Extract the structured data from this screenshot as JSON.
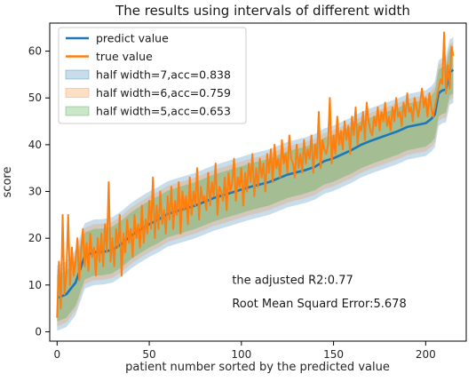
{
  "chart_data": {
    "type": "line",
    "title": "The results using intervals of different width",
    "xlabel": "patient number sorted by the predicted value",
    "ylabel": "score",
    "xlim": [
      -4,
      222
    ],
    "ylim": [
      -2,
      66
    ],
    "xticks": [
      0,
      50,
      100,
      150,
      200
    ],
    "yticks": [
      0,
      10,
      20,
      30,
      40,
      50,
      60
    ],
    "grid": false,
    "legend_position": "top-left",
    "legend": [
      {
        "label": "predict value",
        "kind": "line",
        "color": "#1f77b4"
      },
      {
        "label": "true value",
        "kind": "line",
        "color": "#ff7f0e"
      },
      {
        "label": "half width=7,acc=0.838",
        "kind": "band",
        "color": "#1f77b4",
        "half_width": 7
      },
      {
        "label": "half width=6,acc=0.759",
        "kind": "band",
        "color": "#ff7f0e",
        "half_width": 6
      },
      {
        "label": "half width=5,acc=0.653",
        "kind": "band",
        "color": "#2ca02c",
        "half_width": 5
      }
    ],
    "annotations": [
      {
        "text": "the adjusted R2:0.77",
        "x": 120,
        "y": 11
      },
      {
        "text": "Root Mean Squard Error:5.678",
        "x": 120,
        "y": 6
      }
    ],
    "series": [
      {
        "name": "predict value",
        "color": "#1f77b4",
        "x": [
          0,
          5,
          10,
          15,
          20,
          25,
          30,
          35,
          40,
          45,
          50,
          55,
          60,
          65,
          70,
          75,
          80,
          85,
          90,
          95,
          100,
          105,
          110,
          115,
          120,
          125,
          130,
          135,
          140,
          145,
          150,
          155,
          160,
          165,
          170,
          175,
          180,
          185,
          190,
          195,
          200,
          203,
          205,
          207,
          209,
          211,
          213,
          215
        ],
        "values": [
          7.2,
          8.0,
          10.5,
          16.2,
          17.0,
          17.1,
          17.5,
          18.8,
          20.5,
          21.8,
          23.0,
          24.0,
          25.2,
          25.8,
          26.4,
          27.0,
          27.8,
          28.6,
          29.2,
          29.8,
          30.4,
          31.0,
          31.5,
          32.0,
          32.8,
          33.6,
          34.1,
          34.6,
          35.3,
          36.5,
          37.1,
          38.0,
          38.9,
          40.0,
          40.8,
          41.5,
          42.2,
          42.9,
          43.8,
          44.2,
          44.6,
          45.5,
          46.5,
          51.0,
          51.6,
          51.8,
          55.5,
          56.0
        ]
      },
      {
        "name": "true value",
        "color": "#ff7f0e",
        "x": [
          0,
          1,
          2,
          3,
          4,
          5,
          6,
          7,
          8,
          9,
          10,
          11,
          12,
          13,
          14,
          15,
          16,
          17,
          18,
          19,
          20,
          21,
          22,
          23,
          24,
          25,
          26,
          27,
          28,
          29,
          30,
          31,
          32,
          33,
          34,
          35,
          36,
          37,
          38,
          39,
          40,
          41,
          42,
          43,
          44,
          45,
          46,
          47,
          48,
          49,
          50,
          51,
          52,
          53,
          54,
          55,
          56,
          57,
          58,
          59,
          60,
          61,
          62,
          63,
          64,
          65,
          66,
          67,
          68,
          69,
          70,
          71,
          72,
          73,
          74,
          75,
          76,
          77,
          78,
          79,
          80,
          81,
          82,
          83,
          84,
          85,
          86,
          87,
          88,
          89,
          90,
          91,
          92,
          93,
          94,
          95,
          96,
          97,
          98,
          99,
          100,
          101,
          102,
          103,
          104,
          105,
          106,
          107,
          108,
          109,
          110,
          111,
          112,
          113,
          114,
          115,
          116,
          117,
          118,
          119,
          120,
          121,
          122,
          123,
          124,
          125,
          126,
          127,
          128,
          129,
          130,
          131,
          132,
          133,
          134,
          135,
          136,
          137,
          138,
          139,
          140,
          141,
          142,
          143,
          144,
          145,
          146,
          147,
          148,
          149,
          150,
          151,
          152,
          153,
          154,
          155,
          156,
          157,
          158,
          159,
          160,
          161,
          162,
          163,
          164,
          165,
          166,
          167,
          168,
          169,
          170,
          171,
          172,
          173,
          174,
          175,
          176,
          177,
          178,
          179,
          180,
          181,
          182,
          183,
          184,
          185,
          186,
          187,
          188,
          189,
          190,
          191,
          192,
          193,
          194,
          195,
          196,
          197,
          198,
          199,
          200,
          201,
          202,
          203,
          204,
          205,
          206,
          207,
          208,
          209,
          210,
          211,
          212,
          213,
          214,
          215
        ],
        "values": [
          3,
          15,
          5,
          25,
          8,
          12,
          25,
          10,
          18,
          12,
          15,
          20,
          11,
          17,
          22,
          14,
          19,
          13,
          21,
          16,
          18,
          12,
          20,
          15,
          21,
          14,
          23,
          17,
          32,
          15,
          20,
          14,
          22,
          18,
          25,
          12,
          21,
          17,
          24,
          19,
          22,
          16,
          25,
          20,
          23,
          18,
          27,
          19,
          24,
          21,
          28,
          22,
          33,
          20,
          27,
          22,
          30,
          23,
          26,
          21,
          29,
          24,
          31,
          22,
          28,
          25,
          32,
          21,
          30,
          26,
          29,
          23,
          33,
          25,
          30,
          27,
          35,
          24,
          31,
          28,
          29,
          26,
          34,
          27,
          32,
          29,
          36,
          25,
          31,
          30,
          28,
          33,
          26,
          34,
          30,
          32,
          37,
          28,
          33,
          31,
          35,
          27,
          34,
          30,
          36,
          32,
          38,
          29,
          35,
          31,
          37,
          33,
          36,
          30,
          38,
          34,
          39,
          32,
          40,
          35,
          37,
          33,
          41,
          36,
          38,
          34,
          42,
          37,
          36,
          33,
          40,
          35,
          38,
          34,
          41,
          36,
          39,
          37,
          42,
          34,
          40,
          37,
          47,
          35,
          41,
          39,
          38,
          40,
          50,
          36,
          42,
          38,
          46,
          40,
          43,
          39,
          45,
          41,
          44,
          38,
          46,
          42,
          48,
          40,
          44,
          43,
          47,
          41,
          49,
          45,
          43,
          42,
          46,
          44,
          48,
          43,
          47,
          45,
          49,
          44,
          46,
          43,
          48,
          45,
          50,
          46,
          47,
          44,
          49,
          46,
          51,
          47,
          48,
          45,
          50,
          48,
          46,
          49,
          52,
          48,
          50,
          46,
          51,
          48,
          46,
          48,
          50,
          52,
          54,
          53,
          64,
          51,
          57,
          52,
          61,
          59
        ]
      }
    ]
  }
}
